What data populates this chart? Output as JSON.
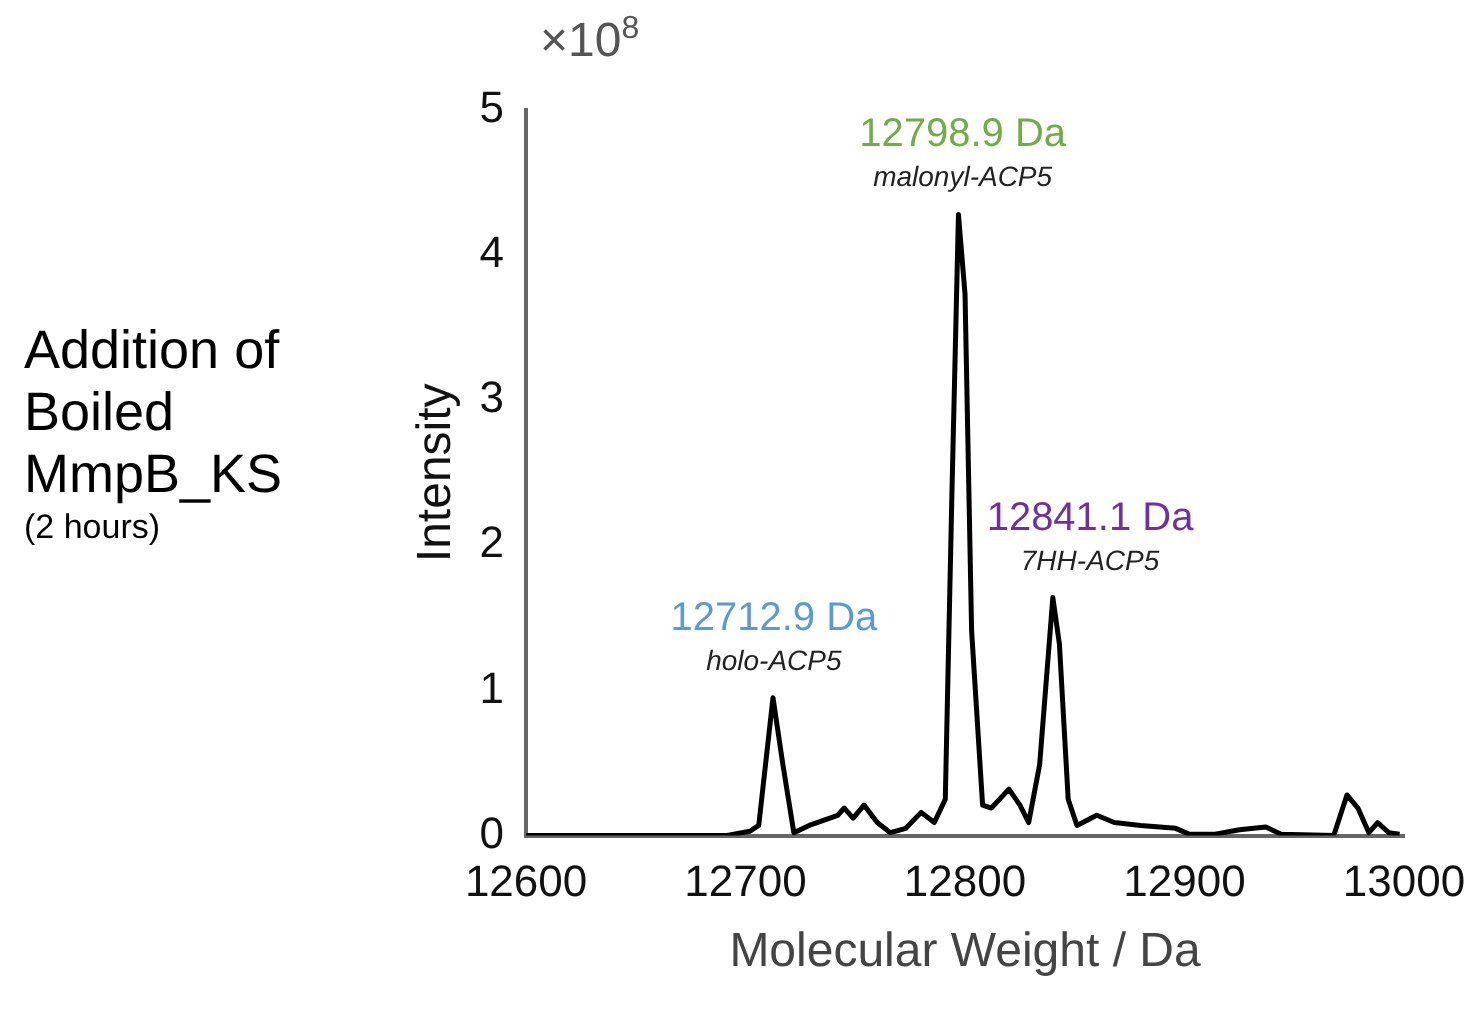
{
  "chart_data": {
    "type": "line",
    "xlabel": "Molecular Weight / Da",
    "ylabel": "Intensity",
    "annotations": [
      "Addition of Boiled MmpB_KS",
      "(2 hours)",
      "×10$^{8}$",
      {
        "text": "12712.9 Da",
        "x": 12712.9,
        "y": 0.95
      },
      {
        "text": "holo-ACP5",
        "x": 12712.9,
        "y": 0.95
      },
      {
        "text": "12798.9 Da",
        "x": 12798.9,
        "y": 4.28
      },
      {
        "text": "malonyl-ACP5",
        "x": 12798.9,
        "y": 4.28
      },
      {
        "text": "12841.1 Da",
        "x": 12841.1,
        "y": 1.64
      },
      {
        "text": "7HH-ACP5",
        "x": 12841.1,
        "y": 1.64
      }
    ],
    "x": [
      12600,
      12691,
      12702,
      12706,
      12712.5,
      12717,
      12722,
      12729,
      12742,
      12745,
      12749,
      12754,
      12760,
      12766,
      12773,
      12780,
      12786,
      12791,
      12794,
      12797,
      12800,
      12803,
      12808,
      12812,
      12820,
      12825,
      12829,
      12834,
      12840,
      12843,
      12847,
      12851,
      12860,
      12868,
      12880,
      12896,
      12902,
      12914,
      12925,
      12937,
      12944,
      12968,
      12974,
      12979,
      12984,
      12988,
      12993,
      12998
    ],
    "series": [
      {
        "color": "#000000",
        "values": [
          0,
          0,
          0.03,
          0.07,
          0.95,
          0.49,
          0.02,
          0.07,
          0.14,
          0.19,
          0.12,
          0.21,
          0.09,
          0.02,
          0.05,
          0.16,
          0.09,
          0.25,
          2.34,
          4.28,
          3.73,
          1.41,
          0.21,
          0.19,
          0.32,
          0.21,
          0.09,
          0.49,
          1.64,
          1.32,
          0.25,
          0.07,
          0.14,
          0.09,
          0.07,
          0.05,
          0.01,
          0.01,
          0.04,
          0.06,
          0.01,
          0,
          0.28,
          0.19,
          0.02,
          0.09,
          0.02,
          0.01
        ]
      }
    ],
    "xlim": [
      12600,
      13000
    ],
    "xticks": [
      12600,
      12700,
      12800,
      12900,
      13000
    ],
    "ylim": [
      0,
      5
    ],
    "yticks": [
      0,
      1,
      2,
      3,
      4,
      5
    ],
    "grid": false,
    "legend": false,
    "marker": "none",
    "line_style": "solid"
  }
}
